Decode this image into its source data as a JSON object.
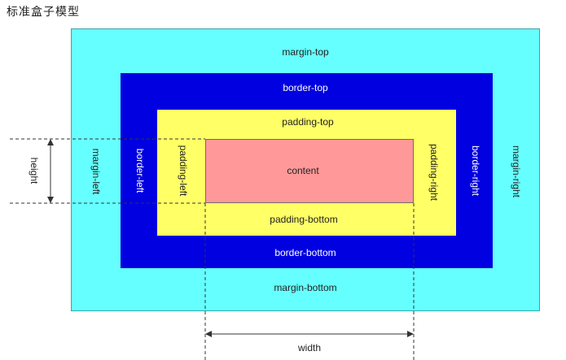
{
  "title": "标准盒子模型",
  "colors": {
    "margin": "#66ffff",
    "border": "#0000e0",
    "padding": "#ffff66",
    "content": "#ff9999",
    "guide": "#333333"
  },
  "labels": {
    "margin_top": "margin-top",
    "margin_bottom": "margin-bottom",
    "margin_left": "margin-left",
    "margin_right": "margin-right",
    "border_top": "border-top",
    "border_bottom": "border-bottom",
    "border_left": "border-left",
    "border_right": "border-right",
    "padding_top": "padding-top",
    "padding_bottom": "padding-bottom",
    "padding_left": "padding-left",
    "padding_right": "padding-right",
    "content": "content",
    "height": "height",
    "width": "width"
  }
}
